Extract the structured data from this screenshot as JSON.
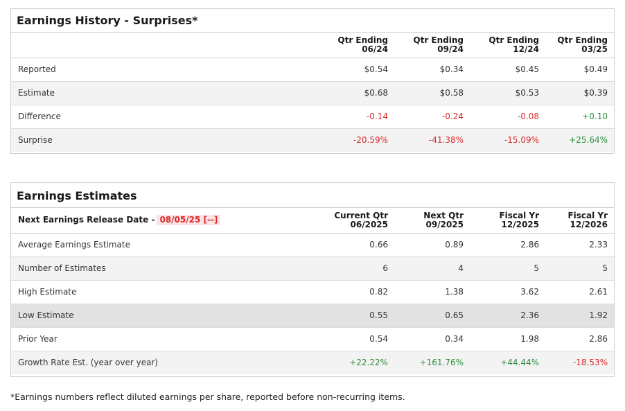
{
  "history": {
    "title": "Earnings History - Surprises*",
    "columns": [
      {
        "line1": "Qtr Ending",
        "line2": "06/24"
      },
      {
        "line1": "Qtr Ending",
        "line2": "09/24"
      },
      {
        "line1": "Qtr Ending",
        "line2": "12/24"
      },
      {
        "line1": "Qtr Ending",
        "line2": "03/25"
      }
    ],
    "rows": [
      {
        "label": "Reported",
        "values": [
          "$0.54",
          "$0.34",
          "$0.45",
          "$0.49"
        ]
      },
      {
        "label": "Estimate",
        "values": [
          "$0.68",
          "$0.58",
          "$0.53",
          "$0.39"
        ]
      },
      {
        "label": "Difference",
        "values": [
          "-0.14",
          "-0.24",
          "-0.08",
          "+0.10"
        ]
      },
      {
        "label": "Surprise",
        "values": [
          "-20.59%",
          "-41.38%",
          "-15.09%",
          "+25.64%"
        ]
      }
    ]
  },
  "estimates": {
    "title": "Earnings Estimates",
    "next_release_label": "Next Earnings Release Date -",
    "next_release_date": "08/05/25 [--]",
    "columns": [
      {
        "line1": "Current Qtr",
        "line2": "06/2025"
      },
      {
        "line1": "Next Qtr",
        "line2": "09/2025"
      },
      {
        "line1": "Fiscal Yr",
        "line2": "12/2025"
      },
      {
        "line1": "Fiscal Yr",
        "line2": "12/2026"
      }
    ],
    "rows": [
      {
        "label": "Average Earnings Estimate",
        "values": [
          "0.66",
          "0.89",
          "2.86",
          "2.33"
        ]
      },
      {
        "label": "Number of Estimates",
        "values": [
          "6",
          "4",
          "5",
          "5"
        ]
      },
      {
        "label": "High Estimate",
        "values": [
          "0.82",
          "1.38",
          "3.62",
          "2.61"
        ]
      },
      {
        "label": "Low Estimate",
        "values": [
          "0.55",
          "0.65",
          "2.36",
          "1.92"
        ]
      },
      {
        "label": "Prior Year",
        "values": [
          "0.54",
          "0.34",
          "1.98",
          "2.86"
        ]
      },
      {
        "label": "Growth Rate Est. (year over year)",
        "values": [
          "+22.22%",
          "+161.76%",
          "+44.44%",
          "-18.53%"
        ]
      }
    ]
  },
  "colors": {
    "negative": "#d92b2b",
    "positive": "#2f8f3f"
  },
  "footnote": "*Earnings numbers reflect diluted earnings per share, reported before non-recurring items."
}
